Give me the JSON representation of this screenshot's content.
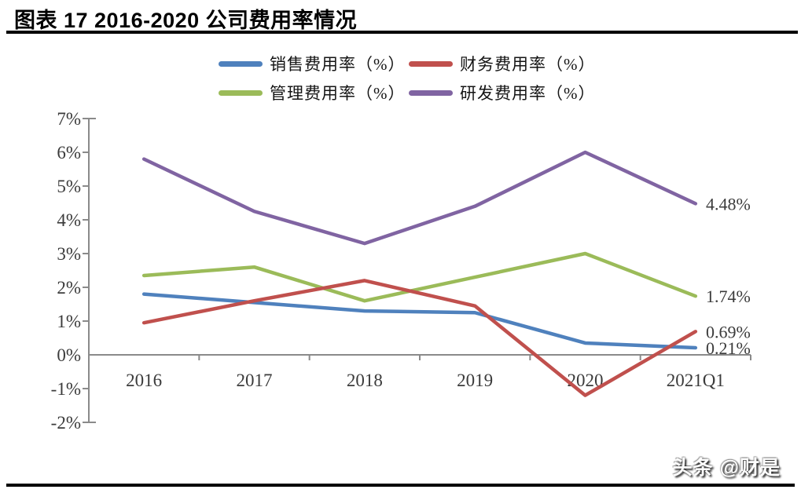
{
  "header": {
    "title": "图表 17 2016-2020 公司费用率情况"
  },
  "footer": {
    "watermark": "头条 @财是"
  },
  "colors": {
    "axis": "#8a8a8a",
    "axis_text": "#3b3b3b",
    "rule": "#000000"
  },
  "chart_data": {
    "type": "line",
    "title": "图表 17 2016-2020 公司费用率情况",
    "categories": [
      "2016",
      "2017",
      "2018",
      "2019",
      "2020",
      "2021Q1"
    ],
    "series": [
      {
        "key": "sales-expense",
        "name": "销售费用率（%）",
        "color": "#4F81BD",
        "values": [
          1.8,
          1.55,
          1.3,
          1.25,
          0.35,
          0.21
        ],
        "end_label": "0.21%"
      },
      {
        "key": "finance-expense",
        "name": "财务费用率（%）",
        "color": "#C0504D",
        "values": [
          0.95,
          1.6,
          2.2,
          1.45,
          -1.2,
          0.69
        ],
        "end_label": "0.69%"
      },
      {
        "key": "admin-expense",
        "name": "管理费用率（%）",
        "color": "#9BBB59",
        "values": [
          2.35,
          2.6,
          1.6,
          2.3,
          3.0,
          1.74
        ],
        "end_label": "1.74%"
      },
      {
        "key": "rd-expense",
        "name": "研发费用率（%）",
        "color": "#8064A2",
        "values": [
          5.8,
          4.25,
          3.3,
          4.4,
          6.0,
          4.48
        ],
        "end_label": "4.48%"
      }
    ],
    "y_ticks": [
      "7%",
      "6%",
      "5%",
      "4%",
      "3%",
      "2%",
      "1%",
      "0%",
      "-1%",
      "-2%"
    ],
    "y_tick_values": [
      7,
      6,
      5,
      4,
      3,
      2,
      1,
      0,
      -1,
      -2
    ],
    "ylim": [
      -2,
      7
    ],
    "xlabel": "",
    "ylabel": "",
    "grid": false,
    "legend_position": "top",
    "draw_order": [
      0,
      2,
      1,
      3
    ]
  }
}
